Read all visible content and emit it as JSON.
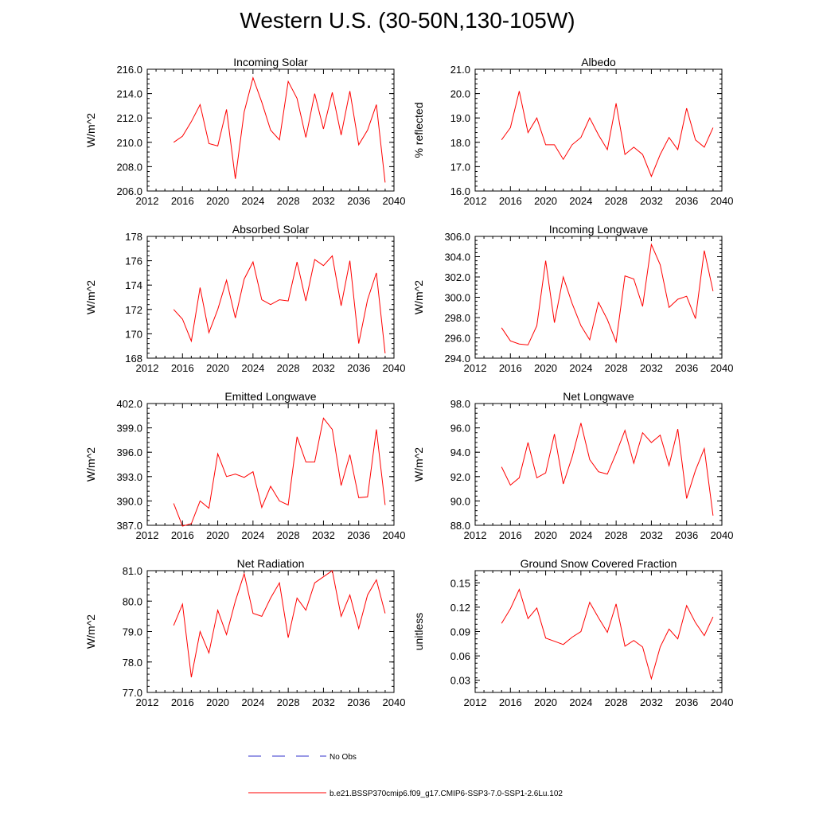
{
  "title": "Western U.S. (30-50N,130-105W)",
  "colors": {
    "model": "#ff0000",
    "obs": "#3333cc",
    "axis": "#000000"
  },
  "legend": [
    {
      "label": "No Obs",
      "style": "dashed",
      "color": "#3333cc"
    },
    {
      "label": "b.e21.BSSP370cmip6.f09_g17.CMIP6-SSP3-7.0-SSP1-2.6Lu.102",
      "style": "solid",
      "color": "#ff0000"
    }
  ],
  "chart_data": [
    {
      "type": "line",
      "title": "Incoming Solar",
      "ylabel": "W/m^2",
      "xlim": [
        2012,
        2040
      ],
      "xticks": [
        2012,
        2016,
        2020,
        2024,
        2028,
        2032,
        2036,
        2040
      ],
      "ylim": [
        206.0,
        216.0
      ],
      "yticks": [
        "206.0",
        "208.0",
        "210.0",
        "212.0",
        "214.0",
        "216.0"
      ],
      "x": [
        2015,
        2016,
        2017,
        2018,
        2019,
        2020,
        2021,
        2022,
        2023,
        2024,
        2025,
        2026,
        2027,
        2028,
        2029,
        2030,
        2031,
        2032,
        2033,
        2034,
        2035,
        2036,
        2037,
        2038,
        2039
      ],
      "series": [
        {
          "values": [
            210.0,
            210.5,
            211.7,
            213.1,
            209.9,
            209.7,
            212.7,
            207.0,
            212.5,
            215.3,
            213.3,
            211.0,
            210.2,
            215.0,
            213.6,
            210.4,
            214.0,
            211.1,
            214.1,
            210.6,
            214.2,
            209.8,
            211.0,
            213.1,
            206.7
          ]
        }
      ]
    },
    {
      "type": "line",
      "title": "Albedo",
      "ylabel": "% reflected",
      "xlim": [
        2012,
        2040
      ],
      "xticks": [
        2012,
        2016,
        2020,
        2024,
        2028,
        2032,
        2036,
        2040
      ],
      "ylim": [
        16.0,
        21.0
      ],
      "yticks": [
        "16.0",
        "17.0",
        "18.0",
        "19.0",
        "20.0",
        "21.0"
      ],
      "x": [
        2015,
        2016,
        2017,
        2018,
        2019,
        2020,
        2021,
        2022,
        2023,
        2024,
        2025,
        2026,
        2027,
        2028,
        2029,
        2030,
        2031,
        2032,
        2033,
        2034,
        2035,
        2036,
        2037,
        2038,
        2039
      ],
      "series": [
        {
          "values": [
            18.1,
            18.6,
            20.1,
            18.4,
            19.0,
            17.9,
            17.9,
            17.3,
            17.9,
            18.2,
            19.0,
            18.3,
            17.7,
            19.6,
            17.5,
            17.8,
            17.5,
            16.6,
            17.5,
            18.2,
            17.7,
            19.4,
            18.1,
            17.8,
            18.6
          ]
        }
      ]
    },
    {
      "type": "line",
      "title": "Absorbed Solar",
      "ylabel": "W/m^2",
      "xlim": [
        2012,
        2040
      ],
      "xticks": [
        2012,
        2016,
        2020,
        2024,
        2028,
        2032,
        2036,
        2040
      ],
      "ylim": [
        168,
        178
      ],
      "yticks": [
        "168",
        "170",
        "172",
        "174",
        "176",
        "178"
      ],
      "x": [
        2015,
        2016,
        2017,
        2018,
        2019,
        2020,
        2021,
        2022,
        2023,
        2024,
        2025,
        2026,
        2027,
        2028,
        2029,
        2030,
        2031,
        2032,
        2033,
        2034,
        2035,
        2036,
        2037,
        2038,
        2039
      ],
      "series": [
        {
          "values": [
            172.0,
            171.2,
            169.4,
            173.8,
            170.1,
            172.0,
            174.4,
            171.3,
            174.5,
            175.9,
            172.8,
            172.4,
            172.8,
            172.7,
            175.9,
            172.7,
            176.1,
            175.6,
            176.4,
            172.3,
            176.0,
            169.2,
            172.8,
            175.0,
            168.4
          ]
        }
      ]
    },
    {
      "type": "line",
      "title": "Incoming Longwave",
      "ylabel": "W/m^2",
      "xlim": [
        2012,
        2040
      ],
      "xticks": [
        2012,
        2016,
        2020,
        2024,
        2028,
        2032,
        2036,
        2040
      ],
      "ylim": [
        294.0,
        306.0
      ],
      "yticks": [
        "294.0",
        "296.0",
        "298.0",
        "300.0",
        "302.0",
        "304.0",
        "306.0"
      ],
      "x": [
        2015,
        2016,
        2017,
        2018,
        2019,
        2020,
        2021,
        2022,
        2023,
        2024,
        2025,
        2026,
        2027,
        2028,
        2029,
        2030,
        2031,
        2032,
        2033,
        2034,
        2035,
        2036,
        2037,
        2038,
        2039
      ],
      "series": [
        {
          "values": [
            297.0,
            295.7,
            295.4,
            295.3,
            297.2,
            303.6,
            297.5,
            302.0,
            299.4,
            297.2,
            295.8,
            299.5,
            297.8,
            295.6,
            302.1,
            301.8,
            299.1,
            305.2,
            303.2,
            299.0,
            299.8,
            300.1,
            297.9,
            304.6,
            300.6
          ]
        }
      ]
    },
    {
      "type": "line",
      "title": "Emitted Longwave",
      "ylabel": "W/m^2",
      "xlim": [
        2012,
        2040
      ],
      "xticks": [
        2012,
        2016,
        2020,
        2024,
        2028,
        2032,
        2036,
        2040
      ],
      "ylim": [
        387.0,
        402.0
      ],
      "yticks": [
        "387.0",
        "390.0",
        "393.0",
        "396.0",
        "399.0",
        "402.0"
      ],
      "x": [
        2015,
        2016,
        2017,
        2018,
        2019,
        2020,
        2021,
        2022,
        2023,
        2024,
        2025,
        2026,
        2027,
        2028,
        2029,
        2030,
        2031,
        2032,
        2033,
        2034,
        2035,
        2036,
        2037,
        2038,
        2039
      ],
      "series": [
        {
          "values": [
            389.7,
            386.9,
            387.2,
            390.0,
            389.1,
            395.8,
            393.0,
            393.3,
            392.9,
            393.6,
            389.2,
            391.8,
            390.0,
            389.5,
            397.9,
            394.8,
            394.8,
            400.2,
            398.8,
            391.9,
            395.7,
            390.4,
            390.5,
            398.8,
            389.5
          ]
        }
      ]
    },
    {
      "type": "line",
      "title": "Net Longwave",
      "ylabel": "W/m^2",
      "xlim": [
        2012,
        2040
      ],
      "xticks": [
        2012,
        2016,
        2020,
        2024,
        2028,
        2032,
        2036,
        2040
      ],
      "ylim": [
        88.0,
        98.0
      ],
      "yticks": [
        "88.0",
        "90.0",
        "92.0",
        "94.0",
        "96.0",
        "98.0"
      ],
      "x": [
        2015,
        2016,
        2017,
        2018,
        2019,
        2020,
        2021,
        2022,
        2023,
        2024,
        2025,
        2026,
        2027,
        2028,
        2029,
        2030,
        2031,
        2032,
        2033,
        2034,
        2035,
        2036,
        2037,
        2038,
        2039
      ],
      "series": [
        {
          "values": [
            92.8,
            91.3,
            91.9,
            94.8,
            91.9,
            92.3,
            95.5,
            91.4,
            93.6,
            96.4,
            93.4,
            92.4,
            92.2,
            93.9,
            95.8,
            93.1,
            95.6,
            94.8,
            95.4,
            92.9,
            95.9,
            90.2,
            92.5,
            94.3,
            88.8
          ]
        }
      ]
    },
    {
      "type": "line",
      "title": "Net Radiation",
      "ylabel": "W/m^2",
      "xlim": [
        2012,
        2040
      ],
      "xticks": [
        2012,
        2016,
        2020,
        2024,
        2028,
        2032,
        2036,
        2040
      ],
      "ylim": [
        77.0,
        81.0
      ],
      "yticks": [
        "77.0",
        "78.0",
        "79.0",
        "80.0",
        "81.0"
      ],
      "x": [
        2015,
        2016,
        2017,
        2018,
        2019,
        2020,
        2021,
        2022,
        2023,
        2024,
        2025,
        2026,
        2027,
        2028,
        2029,
        2030,
        2031,
        2032,
        2033,
        2034,
        2035,
        2036,
        2037,
        2038,
        2039
      ],
      "series": [
        {
          "values": [
            79.2,
            79.9,
            77.5,
            79.0,
            78.3,
            79.7,
            78.9,
            80.0,
            80.9,
            79.6,
            79.5,
            80.1,
            80.6,
            78.8,
            80.1,
            79.7,
            80.6,
            80.8,
            81.0,
            79.5,
            80.2,
            79.1,
            80.2,
            80.7,
            79.6
          ]
        }
      ]
    },
    {
      "type": "line",
      "title": "Ground Snow Covered Fraction",
      "ylabel": "unitless",
      "xlim": [
        2012,
        2040
      ],
      "xticks": [
        2012,
        2016,
        2020,
        2024,
        2028,
        2032,
        2036,
        2040
      ],
      "ylim": [
        0.015,
        0.165
      ],
      "yticks": [
        "0.03",
        "0.06",
        "0.09",
        "0.12",
        "0.15"
      ],
      "x": [
        2015,
        2016,
        2017,
        2018,
        2019,
        2020,
        2021,
        2022,
        2023,
        2024,
        2025,
        2026,
        2027,
        2028,
        2029,
        2030,
        2031,
        2032,
        2033,
        2034,
        2035,
        2036,
        2037,
        2038,
        2039
      ],
      "series": [
        {
          "values": [
            0.1,
            0.118,
            0.142,
            0.106,
            0.119,
            0.082,
            0.078,
            0.074,
            0.083,
            0.09,
            0.126,
            0.107,
            0.089,
            0.124,
            0.072,
            0.079,
            0.071,
            0.032,
            0.071,
            0.093,
            0.081,
            0.122,
            0.101,
            0.085,
            0.108
          ]
        }
      ]
    }
  ]
}
